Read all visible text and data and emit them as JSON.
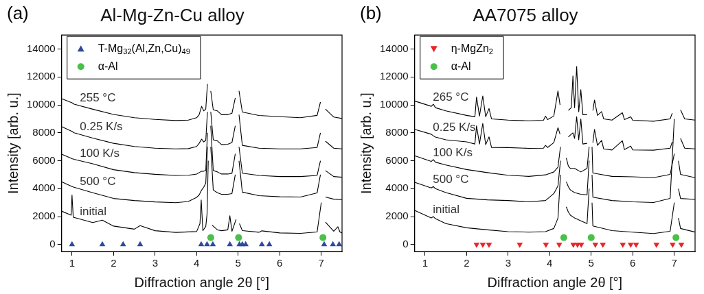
{
  "chart_data": [
    {
      "type": "line",
      "title": "Al-Mg-Zn-Cu alloy",
      "annotations": [
        "(a)"
      ],
      "xlabel": "Diffraction angle 2θ [°]",
      "ylabel": "Intensity [arb. u.]",
      "xlim": [
        0.75,
        7.5
      ],
      "xticks": [
        1,
        2,
        3,
        4,
        5,
        6,
        7
      ],
      "ylim": [
        -500,
        15000
      ],
      "yticks": [
        0,
        2000,
        4000,
        6000,
        8000,
        10000,
        12000,
        14000
      ],
      "grid": false,
      "legend": "top left",
      "series": [
        {
          "name": "255 °C",
          "type": "line",
          "color": "#000000",
          "marker": "none",
          "x": [
            0.75,
            1.0,
            1.05,
            1.5,
            2.0,
            2.5,
            3.0,
            3.5,
            3.8,
            4.0,
            4.06,
            4.12,
            4.17,
            4.22,
            4.26,
            4.3,
            4.34,
            4.4,
            4.5,
            4.6,
            4.75,
            4.85,
            4.93,
            4.98,
            5.02,
            5.1,
            5.5,
            6.0,
            6.5,
            6.9,
            6.98,
            7.04,
            7.1,
            7.3,
            7.5
          ],
          "values": [
            10450,
            10150,
            10050,
            9690,
            9320,
            9080,
            8960,
            8880,
            8910,
            9080,
            9300,
            9900,
            9570,
            9700,
            11500,
            null,
            11000,
            9650,
            9570,
            9300,
            9300,
            9400,
            10500,
            null,
            11000,
            9490,
            9240,
            9160,
            9080,
            9250,
            10200,
            null,
            9700,
            9130,
            9030
          ]
        },
        {
          "name": "0.25 K/s",
          "type": "line",
          "color": "#000000",
          "marker": "none",
          "x": [
            0.75,
            1.0,
            1.05,
            1.5,
            2.0,
            2.5,
            3.0,
            3.5,
            3.8,
            4.0,
            4.06,
            4.12,
            4.17,
            4.22,
            4.26,
            4.3,
            4.34,
            4.4,
            4.5,
            4.6,
            4.75,
            4.85,
            4.93,
            4.98,
            5.02,
            5.1,
            5.5,
            6.0,
            6.5,
            6.9,
            6.98,
            7.04,
            7.1,
            7.3,
            7.5
          ],
          "values": [
            8450,
            8100,
            8000,
            7620,
            7250,
            7020,
            6900,
            6850,
            6870,
            7020,
            7250,
            7550,
            7350,
            7450,
            9500,
            null,
            9500,
            7500,
            7420,
            7150,
            7180,
            7300,
            8500,
            null,
            9300,
            7100,
            6900,
            6850,
            6850,
            6950,
            8000,
            null,
            7400,
            6900,
            6850
          ]
        },
        {
          "name": "100 K/s",
          "type": "line",
          "color": "#000000",
          "marker": "none",
          "x": [
            0.75,
            1.0,
            1.05,
            1.5,
            2.0,
            2.5,
            3.0,
            3.5,
            3.8,
            4.0,
            4.06,
            4.12,
            4.17,
            4.22,
            4.26,
            4.3,
            4.34,
            4.4,
            4.5,
            4.6,
            4.75,
            4.85,
            4.93,
            4.98,
            5.02,
            5.1,
            5.5,
            6.0,
            6.5,
            6.9,
            6.98,
            7.04,
            7.1,
            7.3,
            7.5
          ],
          "values": [
            6470,
            6150,
            6100,
            5780,
            5360,
            5150,
            5030,
            4950,
            4960,
            5050,
            5150,
            5250,
            5250,
            5300,
            8000,
            null,
            8500,
            5300,
            5200,
            5050,
            5050,
            5100,
            6500,
            null,
            7000,
            5110,
            4950,
            4870,
            4870,
            4950,
            6000,
            null,
            5300,
            4870,
            4820
          ]
        },
        {
          "name": "500 °C",
          "type": "line",
          "color": "#000000",
          "marker": "none",
          "x": [
            0.75,
            1.0,
            1.05,
            1.5,
            2.0,
            2.5,
            3.0,
            3.5,
            3.8,
            4.0,
            4.06,
            4.12,
            4.17,
            4.22,
            4.26,
            4.3,
            4.34,
            4.4,
            4.5,
            4.6,
            4.75,
            4.85,
            4.93,
            4.98,
            5.02,
            5.1,
            5.5,
            6.0,
            6.5,
            6.9,
            6.98,
            7.04,
            7.1,
            7.3,
            7.5
          ],
          "values": [
            4490,
            4150,
            4100,
            3710,
            3300,
            3150,
            3050,
            3000,
            3080,
            3380,
            3550,
            3900,
            4100,
            4400,
            7000,
            null,
            7000,
            3900,
            3710,
            3600,
            3600,
            3650,
            5000,
            null,
            6000,
            3750,
            3500,
            3420,
            3400,
            3700,
            5000,
            null,
            3400,
            3250,
            3220
          ]
        },
        {
          "name": "initial",
          "type": "line",
          "color": "#000000",
          "marker": "none",
          "x": [
            0.75,
            0.98,
            1.0,
            1.03,
            1.5,
            1.73,
            2.0,
            2.5,
            2.64,
            3.0,
            3.5,
            4.0,
            4.08,
            4.11,
            4.15,
            4.22,
            4.25,
            4.28,
            4.32,
            4.37,
            4.5,
            4.6,
            4.75,
            4.8,
            4.85,
            4.95,
            4.98,
            5.03,
            5.1,
            5.5,
            5.57,
            6.0,
            6.5,
            6.9,
            7.0,
            7.04,
            7.1,
            7.3,
            7.4,
            7.45,
            7.5
          ],
          "values": [
            2390,
            2100,
            3550,
            1950,
            1570,
            1750,
            1320,
            1100,
            1350,
            990,
            870,
            930,
            1500,
            3190,
            1000,
            1300,
            2150,
            6000,
            null,
            1400,
            1050,
            990,
            1050,
            2060,
            950,
            1800,
            null,
            1500,
            1000,
            880,
            980,
            830,
            800,
            900,
            3000,
            null,
            1600,
            950,
            1270,
            900,
            830
          ]
        },
        {
          "name": "T-Mg$_{32}$(Al,Zn,Cu)$_{49}$",
          "type": "scatter",
          "color": "#2e4a9e",
          "marker": "triangle",
          "x": [
            1.0,
            1.73,
            2.23,
            2.64,
            4.11,
            4.25,
            4.39,
            4.8,
            5.03,
            5.1,
            5.18,
            5.57,
            5.75,
            7.07,
            7.28,
            7.43
          ],
          "values": [
            0,
            0,
            0,
            0,
            0,
            0,
            0,
            0,
            0,
            0,
            0,
            0,
            0,
            0,
            0,
            0
          ]
        },
        {
          "name": "α-Al",
          "type": "scatter",
          "color": "#4cbf4a",
          "marker": "circle",
          "x": [
            4.34,
            5.01,
            7.04
          ],
          "values": [
            500,
            500,
            500
          ]
        }
      ]
    },
    {
      "type": "line",
      "title": "AA7075 alloy",
      "annotations": [
        "(b)"
      ],
      "xlabel": "Diffraction angle 2θ [°]",
      "ylabel": "Intensity [arb. u.]",
      "xlim": [
        0.75,
        7.5
      ],
      "xticks": [
        1,
        2,
        3,
        4,
        5,
        6,
        7
      ],
      "ylim": [
        -500,
        15000
      ],
      "yticks": [
        0,
        2000,
        4000,
        6000,
        8000,
        10000,
        12000,
        14000
      ],
      "grid": false,
      "legend": "top left",
      "series": [
        {
          "name": "265 °C",
          "type": "line",
          "color": "#000000",
          "marker": "none",
          "x": [
            0.75,
            1.15,
            1.2,
            1.25,
            1.5,
            2.0,
            2.2,
            2.24,
            2.31,
            2.39,
            2.46,
            2.54,
            2.6,
            3.0,
            3.5,
            3.85,
            3.9,
            3.95,
            4.1,
            4.2,
            4.25,
            4.3,
            4.36,
            4.45,
            4.52,
            4.56,
            4.6,
            4.65,
            4.7,
            4.75,
            4.8,
            4.9,
            4.98,
            5.04,
            5.08,
            5.15,
            5.25,
            5.3,
            5.5,
            5.75,
            5.8,
            5.95,
            6.0,
            6.5,
            6.9,
            6.95,
            7.04,
            7.15,
            7.25,
            7.5
          ],
          "values": [
            10280,
            9900,
            10050,
            9800,
            9570,
            9250,
            9150,
            10560,
            9200,
            10640,
            9150,
            9740,
            9000,
            8910,
            8860,
            8900,
            9190,
            8950,
            9200,
            11000,
            10000,
            null,
            null,
            9600,
            9800,
            12070,
            9800,
            12750,
            9500,
            11090,
            9300,
            9300,
            null,
            9600,
            10350,
            9250,
            9520,
            9000,
            8910,
            9440,
            8950,
            9150,
            8900,
            8830,
            9000,
            9410,
            null,
            9650,
            9000,
            8910
          ]
        },
        {
          "name": "0.25 K/s",
          "type": "line",
          "color": "#000000",
          "marker": "none",
          "x": [
            0.75,
            1.15,
            1.2,
            1.25,
            1.5,
            2.0,
            2.2,
            2.24,
            2.31,
            2.39,
            2.46,
            2.54,
            2.6,
            3.0,
            3.5,
            3.85,
            3.9,
            3.95,
            4.1,
            4.2,
            4.25,
            4.3,
            4.36,
            4.45,
            4.52,
            4.56,
            4.6,
            4.65,
            4.7,
            4.75,
            4.8,
            4.9,
            4.98,
            5.04,
            5.08,
            5.15,
            5.25,
            5.3,
            5.5,
            5.75,
            5.8,
            5.95,
            6.0,
            6.5,
            6.9,
            6.95,
            7.04,
            7.15,
            7.25,
            7.5
          ],
          "values": [
            8250,
            7900,
            7790,
            7700,
            7500,
            7350,
            7200,
            8500,
            7200,
            8670,
            7150,
            7710,
            6950,
            6940,
            6890,
            6900,
            7100,
            6950,
            7300,
            8370,
            7900,
            null,
            null,
            7700,
            7900,
            8000,
            7600,
            9160,
            7500,
            9000,
            7200,
            7250,
            null,
            7300,
            8250,
            7100,
            7460,
            6850,
            6770,
            7430,
            6800,
            7050,
            6780,
            6760,
            6900,
            7350,
            null,
            7600,
            6900,
            6850
          ]
        },
        {
          "name": "100 K/s",
          "type": "line",
          "color": "#000000",
          "marker": "none",
          "x": [
            0.75,
            1.15,
            1.2,
            1.25,
            1.5,
            2.0,
            2.5,
            3.0,
            3.5,
            3.9,
            4.1,
            4.2,
            4.26,
            4.3,
            4.36,
            4.4,
            4.45,
            4.5,
            4.6,
            4.75,
            4.9,
            4.95,
            4.98,
            5.02,
            5.04,
            5.5,
            6.0,
            6.5,
            6.9,
            7.0,
            7.04,
            7.1,
            7.15,
            7.5
          ],
          "values": [
            6360,
            5950,
            6080,
            5900,
            5700,
            5370,
            5150,
            4960,
            4880,
            4990,
            5200,
            5540,
            7000,
            null,
            null,
            6200,
            5620,
            5450,
            5450,
            5200,
            5450,
            7000,
            null,
            7000,
            5120,
            4880,
            4850,
            4790,
            5020,
            6500,
            null,
            6000,
            5020,
            4790
          ]
        },
        {
          "name": "500 °C",
          "type": "line",
          "color": "#000000",
          "marker": "none",
          "x": [
            0.75,
            1.15,
            1.2,
            1.25,
            1.5,
            2.0,
            2.5,
            3.0,
            3.5,
            3.9,
            4.1,
            4.2,
            4.26,
            4.3,
            4.36,
            4.4,
            4.45,
            4.5,
            4.6,
            4.75,
            4.9,
            4.95,
            4.98,
            5.02,
            5.04,
            5.5,
            6.0,
            6.5,
            6.9,
            7.0,
            7.04,
            7.1,
            7.15,
            7.5
          ],
          "values": [
            4460,
            4050,
            4150,
            4000,
            3720,
            3310,
            3200,
            3150,
            3060,
            3150,
            3650,
            4200,
            6000,
            null,
            null,
            4500,
            4140,
            3900,
            3720,
            3600,
            3560,
            6000,
            null,
            5000,
            3390,
            3150,
            3060,
            3010,
            3300,
            9000,
            null,
            4000,
            3300,
            3230
          ]
        },
        {
          "name": "initial",
          "type": "line",
          "color": "#000000",
          "marker": "none",
          "x": [
            0.75,
            1.15,
            1.2,
            1.25,
            1.5,
            2.0,
            2.5,
            3.0,
            3.5,
            3.9,
            4.1,
            4.2,
            4.26,
            4.3,
            4.36,
            4.4,
            4.45,
            4.5,
            4.6,
            4.75,
            4.9,
            4.95,
            4.98,
            5.02,
            5.04,
            5.5,
            6.0,
            6.5,
            6.9,
            7.0,
            7.04,
            7.1,
            7.15,
            7.5
          ],
          "values": [
            2440,
            1900,
            2000,
            1850,
            1500,
            1200,
            1050,
            920,
            890,
            920,
            1150,
            1900,
            5000,
            null,
            null,
            2700,
            2320,
            2100,
            1900,
            1700,
            1500,
            4000,
            null,
            3000,
            1330,
            1000,
            890,
            790,
            950,
            3000,
            null,
            1900,
            1150,
            890
          ]
        },
        {
          "name": "η-MgZn$_{2}$",
          "type": "scatter",
          "color": "#e8232a",
          "marker": "triangle_down",
          "x": [
            2.24,
            2.39,
            2.54,
            3.28,
            3.91,
            4.23,
            4.57,
            4.67,
            4.76,
            5.1,
            5.28,
            5.76,
            5.95,
            6.08,
            6.57,
            6.96,
            7.17
          ],
          "values": [
            0,
            0,
            0,
            0,
            0,
            0,
            0,
            0,
            0,
            0,
            0,
            0,
            0,
            0,
            0,
            0,
            0
          ]
        },
        {
          "name": "α-Al",
          "type": "scatter",
          "color": "#4cbf4a",
          "marker": "circle",
          "x": [
            4.34,
            5.0,
            7.04
          ],
          "values": [
            500,
            500,
            500
          ]
        }
      ]
    }
  ]
}
